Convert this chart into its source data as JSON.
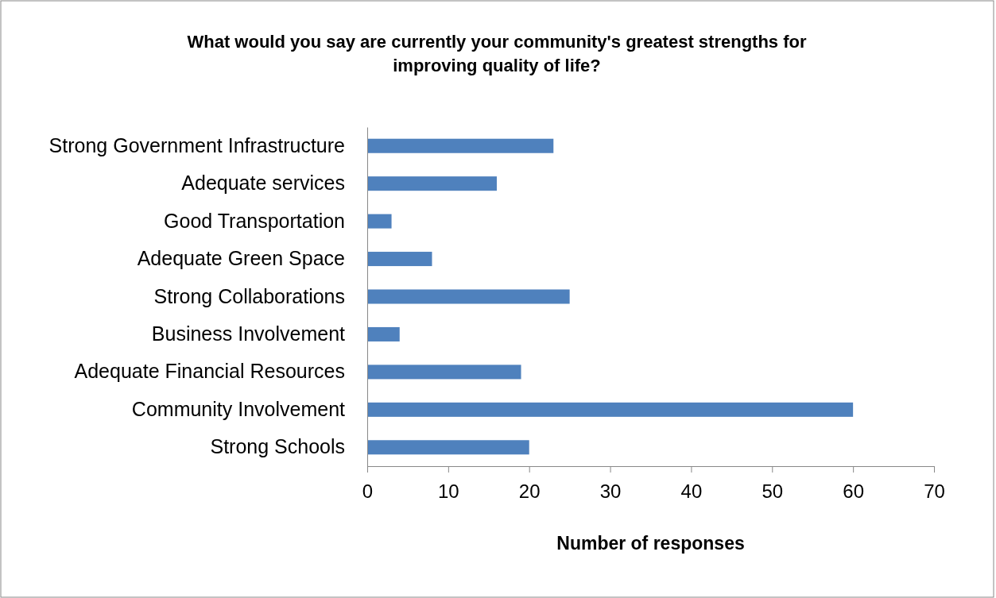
{
  "chart_data": {
    "type": "bar",
    "orientation": "horizontal",
    "title": "What would you say are currently your community's greatest strengths for improving quality of life?",
    "xlabel": "Number of responses",
    "categories": [
      "Strong Government Infrastructure",
      "Adequate services",
      "Good Transportation",
      "Adequate Green Space",
      "Strong Collaborations",
      "Business Involvement",
      "Adequate Financial Resources",
      "Community Involvement",
      "Strong Schools"
    ],
    "values": [
      23,
      16,
      3,
      8,
      25,
      4,
      19,
      60,
      20
    ],
    "color": "#4f81bd",
    "xlim": [
      0,
      70
    ],
    "xticks": [
      0,
      10,
      20,
      30,
      40,
      50,
      60,
      70
    ],
    "grid": false,
    "legend": false
  }
}
